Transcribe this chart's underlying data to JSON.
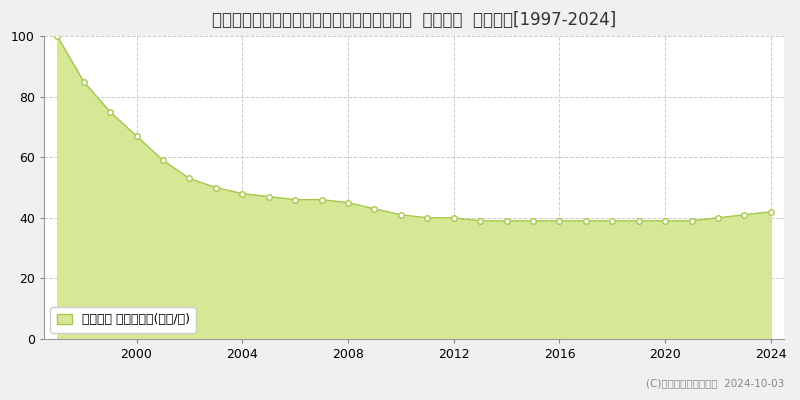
{
  "title": "千葉県松戸市小金きよしケ丘４丁目３番１１  基準地価  地価推移[1997-2024]",
  "years": [
    1997,
    1998,
    1999,
    2000,
    2001,
    2002,
    2003,
    2004,
    2005,
    2006,
    2007,
    2008,
    2009,
    2010,
    2011,
    2012,
    2013,
    2014,
    2015,
    2016,
    2017,
    2018,
    2019,
    2020,
    2021,
    2022,
    2023,
    2024
  ],
  "values": [
    100,
    85,
    75,
    67,
    59,
    53,
    50,
    48,
    47,
    46,
    46,
    45,
    43,
    41,
    40,
    40,
    39,
    39,
    39,
    39,
    39,
    39,
    39,
    39,
    39,
    40,
    41,
    42
  ],
  "line_color": "#a8c84a",
  "fill_color": "#d4e896",
  "marker_face_color": "#ffffff",
  "marker_edge_color": "#a8c84a",
  "bg_color": "#f0f0f0",
  "plot_bg_color": "#ffffff",
  "grid_color": "#cccccc",
  "ylim": [
    0,
    100
  ],
  "yticks": [
    0,
    20,
    40,
    60,
    80,
    100
  ],
  "xticks": [
    2000,
    2004,
    2008,
    2012,
    2016,
    2020,
    2024
  ],
  "legend_label": "基準地価 平均坪単価(万円/坪)",
  "copyright_text": "(C)土地価格ドットコム  2024-10-03",
  "title_fontsize": 12,
  "tick_fontsize": 9,
  "legend_fontsize": 9
}
